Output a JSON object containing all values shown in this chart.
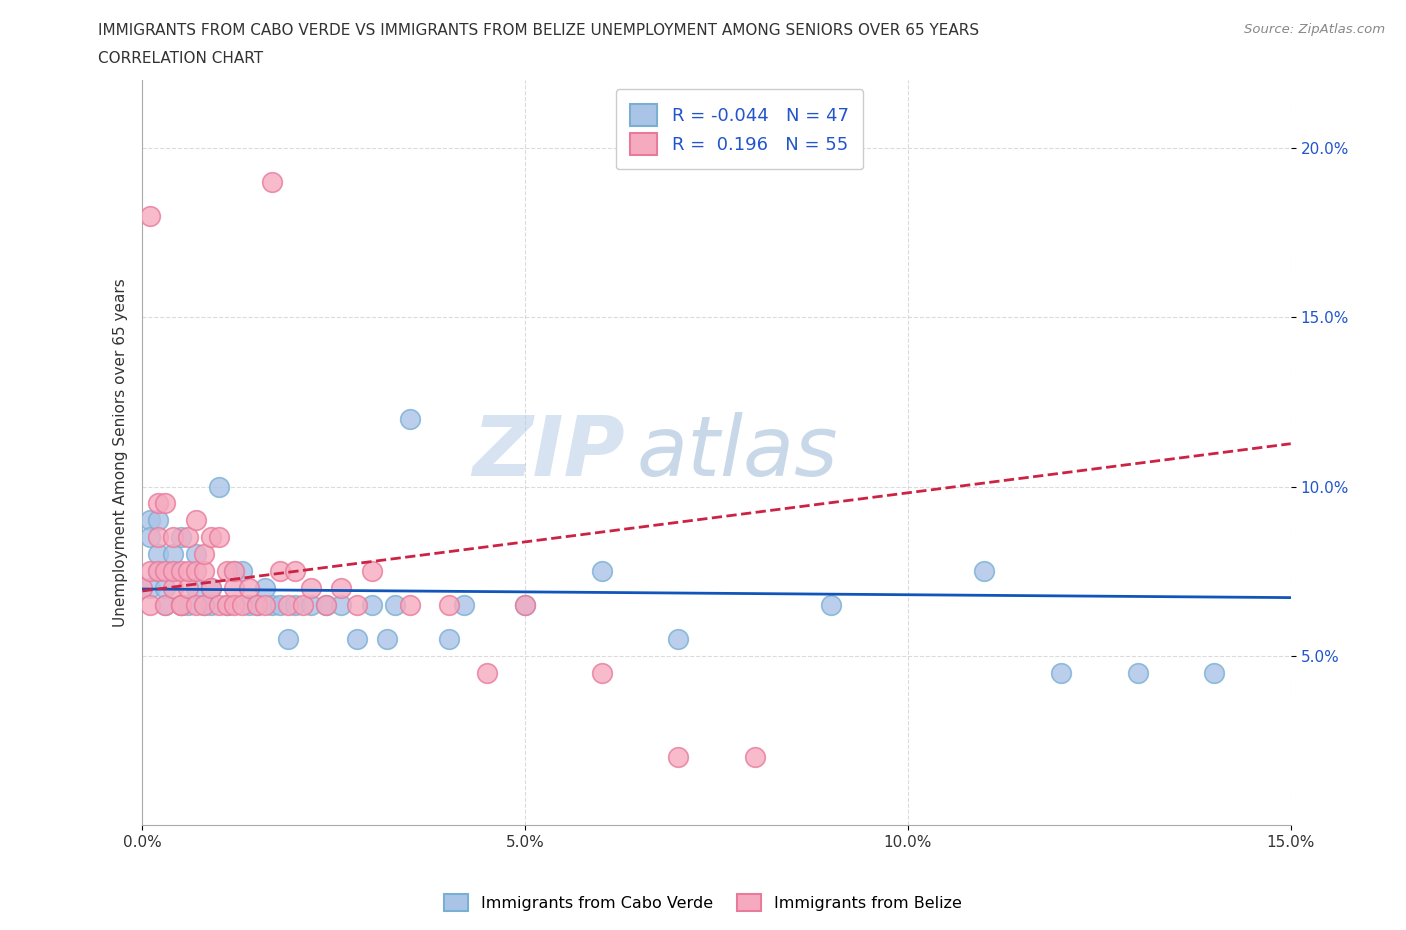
{
  "title_line1": "IMMIGRANTS FROM CABO VERDE VS IMMIGRANTS FROM BELIZE UNEMPLOYMENT AMONG SENIORS OVER 65 YEARS",
  "title_line2": "CORRELATION CHART",
  "source_text": "Source: ZipAtlas.com",
  "ylabel": "Unemployment Among Seniors over 65 years",
  "xlim": [
    0.0,
    0.15
  ],
  "ylim": [
    0.0,
    0.22
  ],
  "xticks": [
    0.0,
    0.05,
    0.1,
    0.15
  ],
  "yticks": [
    0.05,
    0.1,
    0.15,
    0.2
  ],
  "xtick_labels": [
    "0.0%",
    "5.0%",
    "10.0%",
    "15.0%"
  ],
  "ytick_labels": [
    "5.0%",
    "10.0%",
    "15.0%",
    "20.0%"
  ],
  "cabo_verde_color": "#aac4e8",
  "belize_color": "#f5aabf",
  "cabo_verde_edge": "#7aafd4",
  "belize_edge": "#e87a9a",
  "trend_cabo_color": "#1155bb",
  "trend_belize_color": "#cc2244",
  "R_cabo": -0.044,
  "N_cabo": 47,
  "R_belize": 0.196,
  "N_belize": 55,
  "legend_cabo": "Immigrants from Cabo Verde",
  "legend_belize": "Immigrants from Belize",
  "watermark_zip": "ZIP",
  "watermark_atlas": "atlas",
  "cabo_verde_x": [
    0.001,
    0.001,
    0.001,
    0.002,
    0.002,
    0.002,
    0.003,
    0.003,
    0.004,
    0.004,
    0.005,
    0.005,
    0.006,
    0.007,
    0.007,
    0.008,
    0.009,
    0.009,
    0.01,
    0.011,
    0.012,
    0.013,
    0.014,
    0.015,
    0.016,
    0.017,
    0.018,
    0.019,
    0.02,
    0.022,
    0.024,
    0.026,
    0.028,
    0.03,
    0.032,
    0.033,
    0.035,
    0.04,
    0.042,
    0.05,
    0.06,
    0.07,
    0.09,
    0.11,
    0.12,
    0.13,
    0.14
  ],
  "cabo_verde_y": [
    0.07,
    0.09,
    0.085,
    0.075,
    0.08,
    0.09,
    0.065,
    0.07,
    0.075,
    0.08,
    0.085,
    0.065,
    0.065,
    0.07,
    0.08,
    0.065,
    0.07,
    0.065,
    0.1,
    0.065,
    0.075,
    0.075,
    0.065,
    0.065,
    0.07,
    0.065,
    0.065,
    0.055,
    0.065,
    0.065,
    0.065,
    0.065,
    0.055,
    0.065,
    0.055,
    0.065,
    0.12,
    0.055,
    0.065,
    0.065,
    0.075,
    0.055,
    0.065,
    0.075,
    0.045,
    0.045,
    0.045
  ],
  "belize_x": [
    0.0,
    0.001,
    0.001,
    0.001,
    0.002,
    0.002,
    0.002,
    0.003,
    0.003,
    0.003,
    0.004,
    0.004,
    0.004,
    0.005,
    0.005,
    0.005,
    0.006,
    0.006,
    0.006,
    0.007,
    0.007,
    0.007,
    0.008,
    0.008,
    0.008,
    0.009,
    0.009,
    0.01,
    0.01,
    0.011,
    0.011,
    0.012,
    0.012,
    0.012,
    0.013,
    0.014,
    0.015,
    0.016,
    0.017,
    0.018,
    0.019,
    0.02,
    0.021,
    0.022,
    0.024,
    0.026,
    0.028,
    0.03,
    0.035,
    0.04,
    0.045,
    0.05,
    0.06,
    0.07,
    0.08
  ],
  "belize_y": [
    0.07,
    0.18,
    0.065,
    0.075,
    0.095,
    0.085,
    0.075,
    0.065,
    0.075,
    0.095,
    0.07,
    0.075,
    0.085,
    0.065,
    0.075,
    0.065,
    0.07,
    0.085,
    0.075,
    0.065,
    0.075,
    0.09,
    0.075,
    0.08,
    0.065,
    0.07,
    0.085,
    0.065,
    0.085,
    0.065,
    0.075,
    0.07,
    0.065,
    0.075,
    0.065,
    0.07,
    0.065,
    0.065,
    0.19,
    0.075,
    0.065,
    0.075,
    0.065,
    0.07,
    0.065,
    0.07,
    0.065,
    0.075,
    0.065,
    0.065,
    0.045,
    0.065,
    0.045,
    0.02,
    0.02
  ]
}
